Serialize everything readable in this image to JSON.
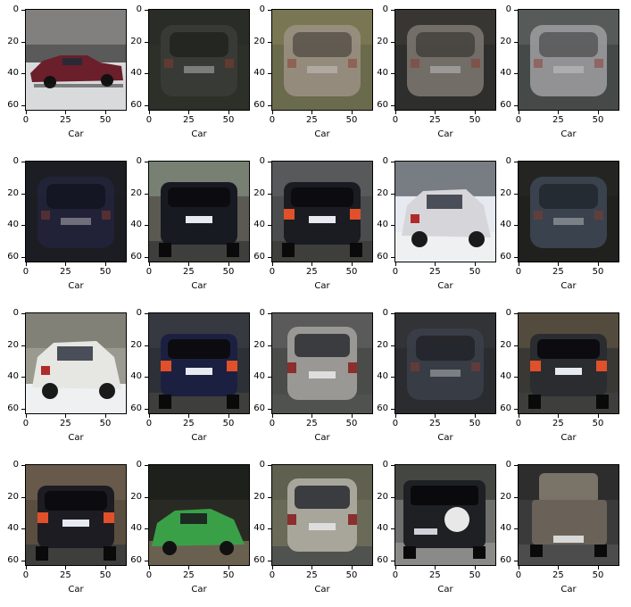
{
  "figure": {
    "rows": 4,
    "cols": 5,
    "y_ticks": [
      "0",
      "20",
      "40",
      "60"
    ],
    "x_ticks": [
      "0",
      "25",
      "50"
    ],
    "panels": [
      {
        "caption": "Car",
        "scene": "side-red-sedan",
        "colors": {
          "bg": "#5a5a5a",
          "body": "#6b1f2a",
          "sky": "#8c8a88"
        }
      },
      {
        "caption": "Car",
        "scene": "rear-blur",
        "colors": {
          "bg": "#2c3028",
          "body": "#3a3d36",
          "sky": "#2a2c28"
        }
      },
      {
        "caption": "Car",
        "scene": "rear-blur",
        "colors": {
          "bg": "#6a6a4c",
          "body": "#9a8f82",
          "sky": "#7d7a55"
        }
      },
      {
        "caption": "Car",
        "scene": "rear-blur",
        "colors": {
          "bg": "#2e2e2c",
          "body": "#7a746e",
          "sky": "#3a3834"
        }
      },
      {
        "caption": "Car",
        "scene": "rear-blur",
        "colors": {
          "bg": "#454a48",
          "body": "#9a9a9c",
          "sky": "#5a5e5c"
        }
      },
      {
        "caption": "Car",
        "scene": "rear-blur",
        "colors": {
          "bg": "#1c1d22",
          "body": "#22243a",
          "sky": "#1e1f26"
        }
      },
      {
        "caption": "Car",
        "scene": "rear-dark",
        "colors": {
          "bg": "#5a5a52",
          "body": "#181a22",
          "sky": "#7e8a7a"
        }
      },
      {
        "caption": "Car",
        "scene": "rear-dark-lights",
        "colors": {
          "bg": "#4a4c4e",
          "body": "#1a1c22",
          "sky": "#5a5c5e"
        }
      },
      {
        "caption": "Car",
        "scene": "side-white",
        "colors": {
          "bg": "#e6eaf0",
          "body": "#d6d6da",
          "sky": "#5c6068"
        }
      },
      {
        "caption": "Car",
        "scene": "rear-blur",
        "colors": {
          "bg": "#20201e",
          "body": "#3c4652",
          "sky": "#262624"
        }
      },
      {
        "caption": "Car",
        "scene": "side-white",
        "colors": {
          "bg": "#9a9a90",
          "body": "#e6e6e2",
          "sky": "#7a7a70"
        }
      },
      {
        "caption": "Car",
        "scene": "rear-dark-lights",
        "colors": {
          "bg": "#2e3038",
          "body": "#1c2040",
          "sky": "#3a3c44"
        }
      },
      {
        "caption": "Car",
        "scene": "rear-light",
        "colors": {
          "bg": "#4a4c4a",
          "body": "#9a9894",
          "sky": "#5c5e5c"
        }
      },
      {
        "caption": "Car",
        "scene": "rear-blur",
        "colors": {
          "bg": "#2a2c30",
          "body": "#3a3e48",
          "sky": "#34363a"
        }
      },
      {
        "caption": "Car",
        "scene": "rear-dark-lights",
        "colors": {
          "bg": "#3a3834",
          "body": "#2a2c30",
          "sky": "#5a5040"
        }
      },
      {
        "caption": "Car",
        "scene": "rear-dark-lights",
        "colors": {
          "bg": "#5a4e40",
          "body": "#1c1c22",
          "sky": "#6a5e4e"
        }
      },
      {
        "caption": "Car",
        "scene": "side-green",
        "colors": {
          "bg": "#2a2a24",
          "body": "#3aa048",
          "sky": "#1c1e1a"
        }
      },
      {
        "caption": "Car",
        "scene": "rear-light",
        "colors": {
          "bg": "#6a6a58",
          "body": "#a8a69a",
          "sky": "#5c5e4e"
        }
      },
      {
        "caption": "Car",
        "scene": "rear-suv-spare",
        "colors": {
          "bg": "#6e6e6c",
          "body": "#1e2024",
          "sky": "#3a3c38"
        }
      },
      {
        "caption": "Car",
        "scene": "rear-pickup",
        "colors": {
          "bg": "#3a3a3a",
          "body": "#6a6258",
          "sky": "#2a2a2a"
        }
      }
    ]
  }
}
